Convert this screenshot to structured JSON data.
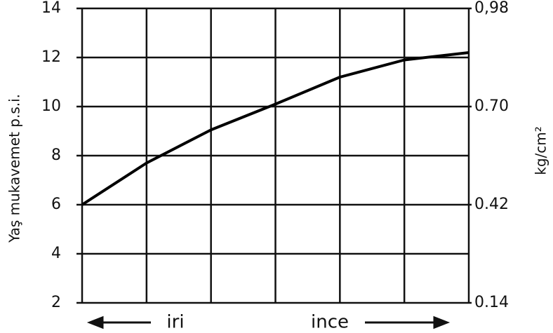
{
  "chart_data": {
    "type": "line",
    "y_label": "Yaş mukavemet p.s.i.",
    "y2_label": "kg/cm²",
    "x_labels": [
      "iri",
      "ince"
    ],
    "x": [
      0,
      1,
      2,
      3,
      4,
      5,
      6
    ],
    "xlim": [
      0,
      6
    ],
    "series": [
      {
        "name": "Yaş mukavemet",
        "color": "#000000",
        "values": [
          6,
          7.7,
          9.05,
          10.1,
          11.2,
          11.9,
          12.2
        ]
      }
    ],
    "ylim": [
      2,
      14
    ],
    "yticks": [
      2,
      4,
      6,
      8,
      10,
      12,
      14
    ],
    "y2lim": [
      0.14,
      0.98
    ],
    "y2ticks": [
      0.14,
      0.42,
      {
        "value": 0.7,
        "label": "0.70"
      },
      {
        "value": 0.98,
        "label": "0,98"
      }
    ],
    "grid": true
  }
}
